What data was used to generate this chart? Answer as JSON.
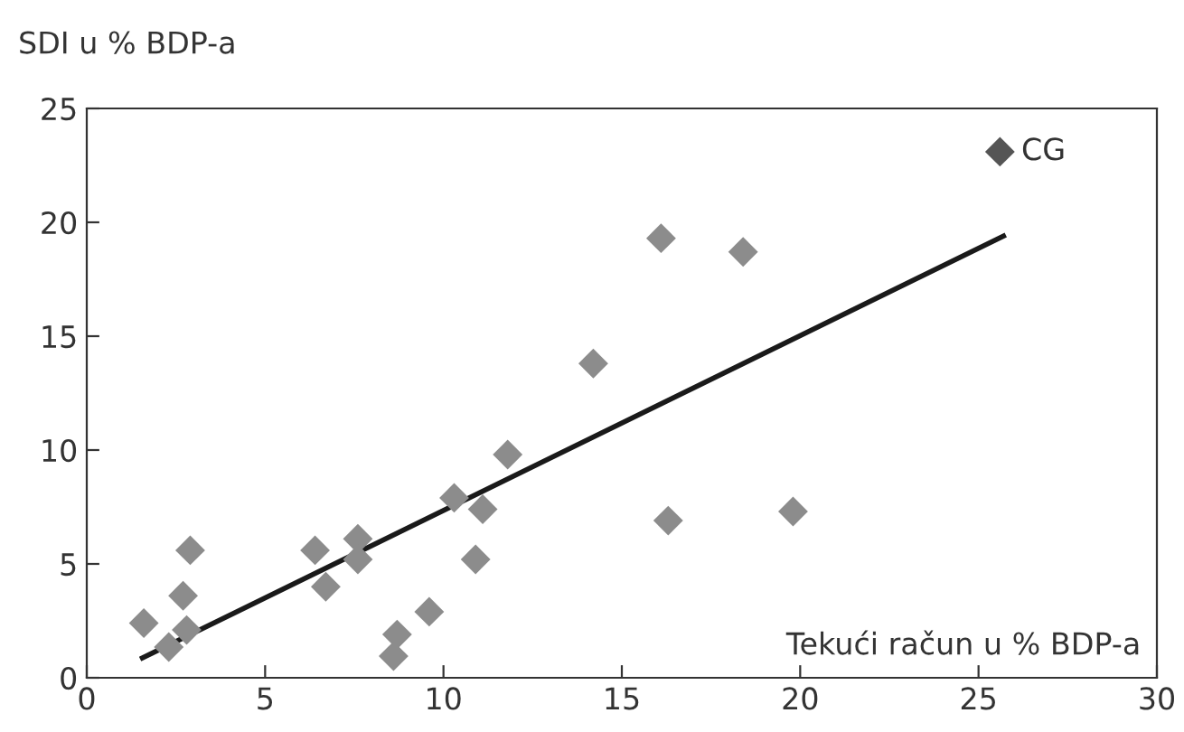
{
  "chart_data": {
    "type": "scatter",
    "xlabel": "Tekući račun u % BDP-a",
    "ylabel": "SDI u % BDP-a",
    "xlim": [
      0,
      30
    ],
    "ylim": [
      0,
      25
    ],
    "xticks": [
      0,
      5,
      10,
      15,
      20,
      25,
      30
    ],
    "yticks": [
      0,
      5,
      10,
      15,
      20,
      25
    ],
    "grid": false,
    "marker": "diamond",
    "series": [
      {
        "color": "#8c8c8c",
        "x": [
          1.6,
          2.3,
          2.7,
          2.8,
          2.9,
          6.4,
          6.7,
          7.6,
          7.6,
          8.7,
          8.6,
          9.6,
          10.3,
          10.9,
          11.1,
          11.8,
          14.2,
          16.1,
          16.3,
          18.4,
          19.8
        ],
        "values": [
          2.4,
          1.35,
          3.6,
          2.1,
          5.6,
          5.6,
          4.0,
          6.1,
          5.2,
          1.9,
          0.95,
          2.9,
          7.9,
          5.2,
          7.4,
          9.8,
          13.8,
          19.3,
          6.9,
          18.7,
          7.3
        ]
      },
      {
        "name": "CG",
        "color": "#555555",
        "x": [
          25.6
        ],
        "values": [
          23.1
        ]
      },
      {
        "type": "line",
        "marker": "none",
        "color": "#1a1a1a",
        "x": [
          1.56,
          25.7
        ],
        "values": [
          0.87,
          19.4
        ]
      }
    ]
  }
}
